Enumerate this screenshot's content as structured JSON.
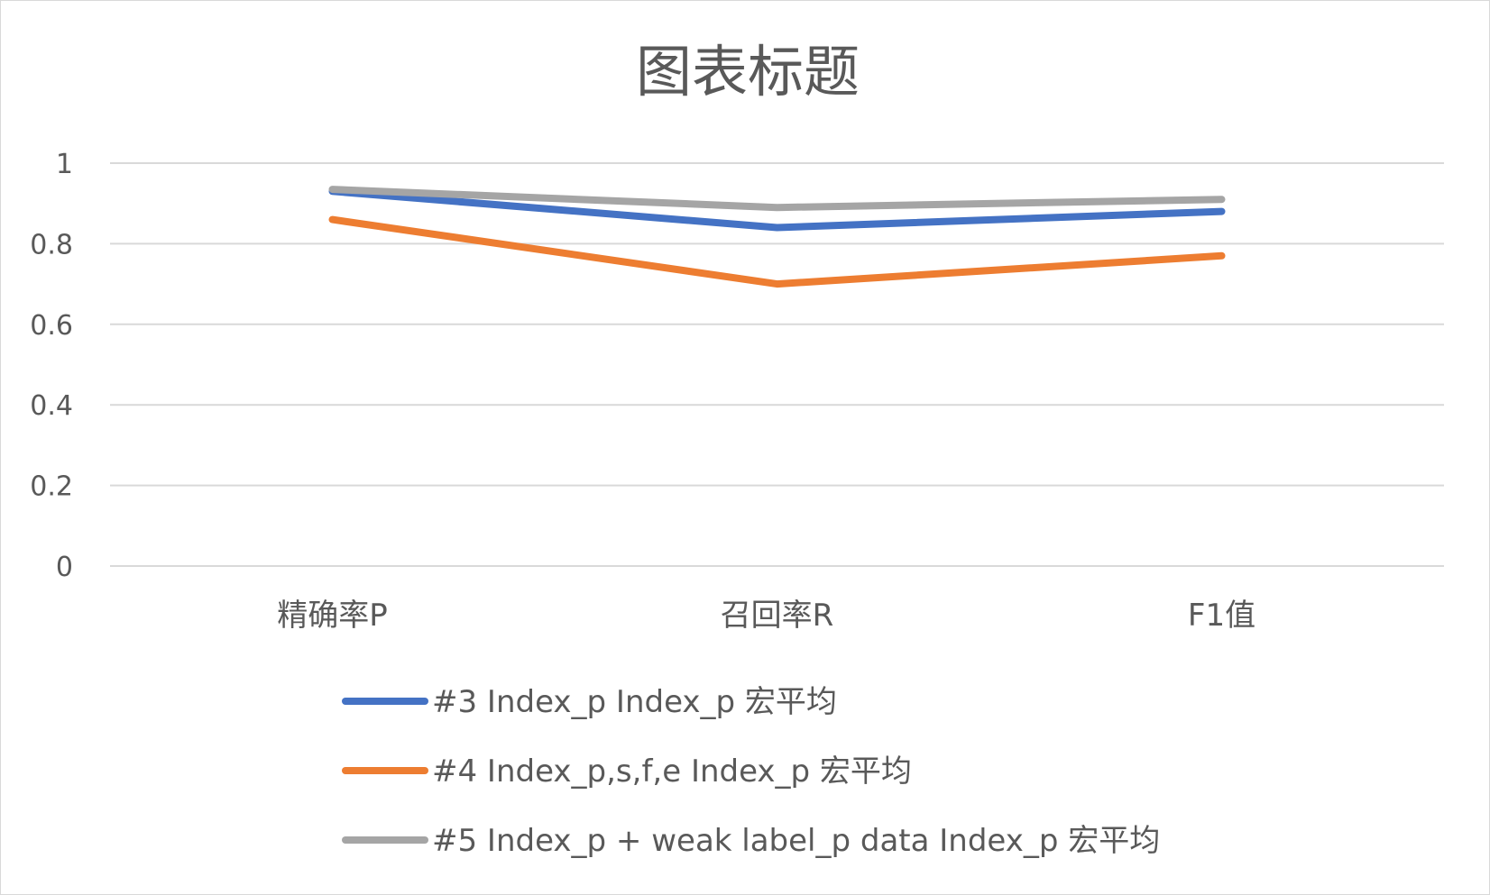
{
  "chart_data": {
    "type": "line",
    "title": "图表标题",
    "xlabel": "",
    "ylabel": "",
    "categories": [
      "精确率P",
      "召回率R",
      "F1值"
    ],
    "ylim": [
      0,
      1
    ],
    "yticks": [
      0,
      0.2,
      0.4,
      0.6,
      0.8,
      1
    ],
    "ytick_labels": [
      "0",
      "0.2",
      "0.4",
      "0.6",
      "0.8",
      "1"
    ],
    "grid": true,
    "legend_position": "bottom",
    "series": [
      {
        "name": "#3 Index_p Index_p 宏平均",
        "color": "#4472c4",
        "values": [
          0.93,
          0.84,
          0.88
        ]
      },
      {
        "name": "#4 Index_p,s,f,e Index_p 宏平均",
        "color": "#ed7d31",
        "values": [
          0.86,
          0.7,
          0.77
        ]
      },
      {
        "name": "#5 Index_p + weak label_p data Index_p 宏平均",
        "color": "#a5a5a5",
        "values": [
          0.935,
          0.89,
          0.91
        ]
      }
    ]
  }
}
